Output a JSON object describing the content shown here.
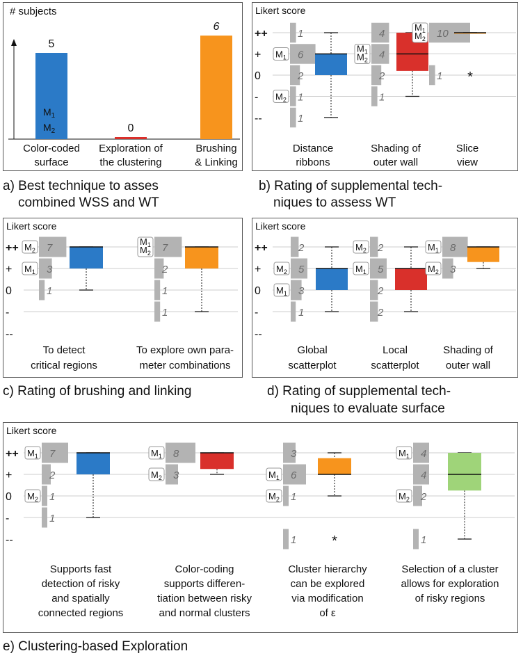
{
  "captions": {
    "a_line1": "a) Best technique to asses",
    "a_line2": "combined WSS and WT",
    "b_line1": "b) Rating of supplemental tech-",
    "b_line2": "niques to assess WT",
    "c_line1": "c) Rating of brushing and linking",
    "d_line1": "d) Rating of supplemental tech-",
    "d_line2": "niques to evaluate surface",
    "e_line1": "e) Clustering-based Exploration"
  },
  "colors": {
    "blue": "#2b7ac7",
    "red": "#d9302b",
    "orange": "#f7941d",
    "green": "#9fd479",
    "gray": "#b3b3b3",
    "count_text": "#6b6b6b"
  },
  "chart_data": [
    {
      "id": "a",
      "type": "bar",
      "ylabel": "# subjects",
      "categories": [
        "Color-coded surface",
        "Exploration of the clustering",
        "Brushing & Linking"
      ],
      "category_lines": [
        [
          "Color-coded",
          "surface"
        ],
        [
          "Exploration of",
          "the clustering"
        ],
        [
          "Brushing",
          "& Linking"
        ]
      ],
      "values": [
        5,
        0,
        6
      ],
      "value_labels": [
        "5",
        "0",
        "6"
      ],
      "colors": [
        "#2b7ac7",
        "#d9302b",
        "#f7941d"
      ],
      "ylim": [
        0,
        6.5
      ],
      "markers": [
        {
          "bar": 0,
          "labels": [
            "M1",
            "M2"
          ]
        }
      ]
    },
    {
      "id": "b",
      "type": "boxplot",
      "ylabel": "Likert score",
      "levels": [
        "++",
        "+",
        "0",
        "-",
        "--"
      ],
      "items": [
        {
          "label": [
            "Distance",
            "ribbons"
          ],
          "color": "#2b7ac7",
          "counts": [
            1,
            6,
            2,
            1,
            1
          ],
          "markers": [
            {
              "level": 1,
              "labels": [
                "M1"
              ]
            },
            {
              "level": 3,
              "labels": [
                "M2"
              ]
            }
          ],
          "box": {
            "q1": 0,
            "median": 1,
            "q3": 1,
            "min": -2,
            "max": 2
          }
        },
        {
          "label": [
            "Shading of",
            "outer wall"
          ],
          "color": "#d9302b",
          "counts": [
            4,
            4,
            2,
            1,
            0
          ],
          "markers": [
            {
              "level": 1,
              "labels": [
                "M1",
                "M2"
              ]
            }
          ],
          "box": {
            "q1": 0.2,
            "median": 1,
            "q3": 2,
            "min": -1,
            "max": 2
          }
        },
        {
          "label": [
            "Slice",
            "view"
          ],
          "color": "#f7941d",
          "counts": [
            10,
            0,
            1,
            0,
            0
          ],
          "markers": [
            {
              "level": 0,
              "labels": [
                "M1",
                "M2"
              ]
            }
          ],
          "box": {
            "q1": 2,
            "median": 2,
            "q3": 2,
            "min": 2,
            "max": 2
          },
          "outliers": [
            0
          ]
        }
      ]
    },
    {
      "id": "c",
      "type": "boxplot",
      "ylabel": "Likert score",
      "levels": [
        "++",
        "+",
        "0",
        "-",
        "--"
      ],
      "items": [
        {
          "label": [
            "To detect",
            "critical regions"
          ],
          "color": "#2b7ac7",
          "counts": [
            7,
            3,
            1,
            0,
            0
          ],
          "markers": [
            {
              "level": 0,
              "labels": [
                "M2"
              ]
            },
            {
              "level": 1,
              "labels": [
                "M1"
              ]
            }
          ],
          "box": {
            "q1": 1,
            "median": 2,
            "q3": 2,
            "min": 0,
            "max": 2
          }
        },
        {
          "label": [
            "To explore own para-",
            "meter combinations"
          ],
          "color": "#f7941d",
          "counts": [
            7,
            2,
            1,
            1,
            0
          ],
          "markers": [
            {
              "level": 0,
              "labels": [
                "M1",
                "M2"
              ]
            }
          ],
          "box": {
            "q1": 1,
            "median": 2,
            "q3": 2,
            "min": -1,
            "max": 2
          }
        }
      ]
    },
    {
      "id": "d",
      "type": "boxplot",
      "ylabel": "Likert score",
      "levels": [
        "++",
        "+",
        "0",
        "-",
        "--"
      ],
      "items": [
        {
          "label": [
            "Global",
            "scatterplot"
          ],
          "color": "#2b7ac7",
          "counts": [
            2,
            5,
            3,
            1,
            0
          ],
          "markers": [
            {
              "level": 1,
              "labels": [
                "M2"
              ]
            },
            {
              "level": 2,
              "labels": [
                "M1"
              ]
            }
          ],
          "box": {
            "q1": 0,
            "median": 1,
            "q3": 1,
            "min": -1,
            "max": 2
          }
        },
        {
          "label": [
            "Local",
            "scatterplot"
          ],
          "color": "#d9302b",
          "counts": [
            2,
            5,
            2,
            2,
            0
          ],
          "markers": [
            {
              "level": 0,
              "labels": [
                "M2"
              ]
            },
            {
              "level": 1,
              "labels": [
                "M1"
              ]
            }
          ],
          "box": {
            "q1": 0,
            "median": 1,
            "q3": 1,
            "min": -1,
            "max": 2
          }
        },
        {
          "label": [
            "Shading of",
            "outer wall"
          ],
          "color": "#f7941d",
          "counts": [
            8,
            3,
            0,
            0,
            0
          ],
          "markers": [
            {
              "level": 0,
              "labels": [
                "M1"
              ]
            },
            {
              "level": 1,
              "labels": [
                "M2"
              ]
            }
          ],
          "box": {
            "q1": 1.3,
            "median": 2,
            "q3": 2,
            "min": 1,
            "max": 2
          }
        }
      ]
    },
    {
      "id": "e",
      "type": "boxplot",
      "ylabel": "Likert score",
      "levels": [
        "++",
        "+",
        "0",
        "-",
        "--"
      ],
      "items": [
        {
          "label": [
            "Supports fast",
            "detection of risky",
            "and spatially",
            "connected regions"
          ],
          "color": "#2b7ac7",
          "counts": [
            7,
            2,
            1,
            1,
            0
          ],
          "markers": [
            {
              "level": 0,
              "labels": [
                "M1"
              ]
            },
            {
              "level": 2,
              "labels": [
                "M2"
              ]
            }
          ],
          "box": {
            "q1": 1,
            "median": 2,
            "q3": 2,
            "min": -1,
            "max": 2
          }
        },
        {
          "label": [
            "Color-coding",
            "supports differen-",
            "tiation between risky",
            "and normal clusters"
          ],
          "color": "#d9302b",
          "counts": [
            8,
            3,
            0,
            0,
            0
          ],
          "markers": [
            {
              "level": 0,
              "labels": [
                "M1"
              ]
            },
            {
              "level": 1,
              "labels": [
                "M2"
              ]
            }
          ],
          "box": {
            "q1": 1.25,
            "median": 2,
            "q3": 2,
            "min": 1,
            "max": 2
          }
        },
        {
          "label": [
            "Cluster hierarchy",
            "can be explored",
            "via modification",
            "of  ε"
          ],
          "color": "#f7941d",
          "counts": [
            3,
            6,
            1,
            0,
            1
          ],
          "markers": [
            {
              "level": 1,
              "labels": [
                "M1"
              ]
            },
            {
              "level": 2,
              "labels": [
                "M2"
              ]
            }
          ],
          "box": {
            "q1": 1,
            "median": 1,
            "q3": 1.75,
            "min": 0,
            "max": 2
          },
          "outliers": [
            -2
          ]
        },
        {
          "label": [
            "Selection of a cluster",
            "allows for exploration",
            "of risky regions"
          ],
          "color": "#9fd479",
          "counts": [
            4,
            4,
            2,
            0,
            1
          ],
          "markers": [
            {
              "level": 0,
              "labels": [
                "M1"
              ]
            },
            {
              "level": 2,
              "labels": [
                "M2"
              ]
            }
          ],
          "box": {
            "q1": 0.25,
            "median": 1,
            "q3": 2,
            "min": -2,
            "max": 2
          }
        }
      ]
    }
  ]
}
